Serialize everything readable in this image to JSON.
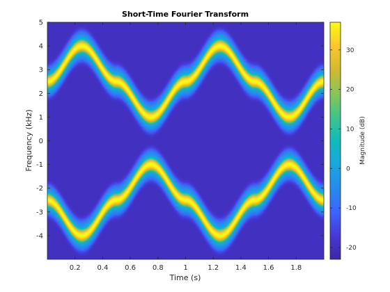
{
  "chart_data": {
    "type": "heatmap",
    "title": "Short-Time Fourier Transform",
    "xlabel": "Time (s)",
    "ylabel": "Frequency (kHz)",
    "colorbar_label": "Magnitude (dB)",
    "xlim": [
      0,
      2
    ],
    "ylim": [
      -5,
      5
    ],
    "clim": [
      -23,
      37
    ],
    "colormap": "parula",
    "xticks": [
      0.2,
      0.4,
      0.6,
      0.8,
      1,
      1.2,
      1.4,
      1.6,
      1.8
    ],
    "xtick_labels": [
      "0.2",
      "0.4",
      "0.6",
      "0.8",
      "1",
      "1.2",
      "1.4",
      "1.6",
      "1.8"
    ],
    "yticks": [
      5,
      4,
      3,
      2,
      1,
      0,
      -1,
      -2,
      -3,
      -4
    ],
    "ytick_labels": [
      "5",
      "4",
      "3",
      "2",
      "1",
      "0",
      "-1",
      "-2",
      "-3",
      "-4"
    ],
    "cbticks": [
      30,
      20,
      10,
      0,
      -10,
      -20
    ],
    "cbtick_labels": [
      "30",
      "20",
      "10",
      "0",
      "-10",
      "-20"
    ],
    "background_level_db": -20,
    "peak_level_db": 37,
    "series": [
      {
        "ridge": "positive-frequency",
        "t": [
          0,
          0.25,
          0.5,
          0.75,
          1.0,
          1.25,
          1.5,
          1.75,
          2.0
        ],
        "f": [
          2.5,
          4.0,
          2.5,
          1.0,
          2.5,
          4.0,
          2.5,
          1.0,
          2.5
        ]
      },
      {
        "ridge": "negative-frequency",
        "t": [
          0,
          0.25,
          0.5,
          0.75,
          1.0,
          1.25,
          1.5,
          1.75,
          2.0
        ],
        "f": [
          -2.5,
          -4.0,
          -2.5,
          -1.0,
          -2.5,
          -4.0,
          -2.5,
          -1.0,
          -2.5
        ]
      }
    ]
  },
  "colors": {
    "background": "#3e2e9e",
    "ridge_peak": "#f9fb0e"
  }
}
